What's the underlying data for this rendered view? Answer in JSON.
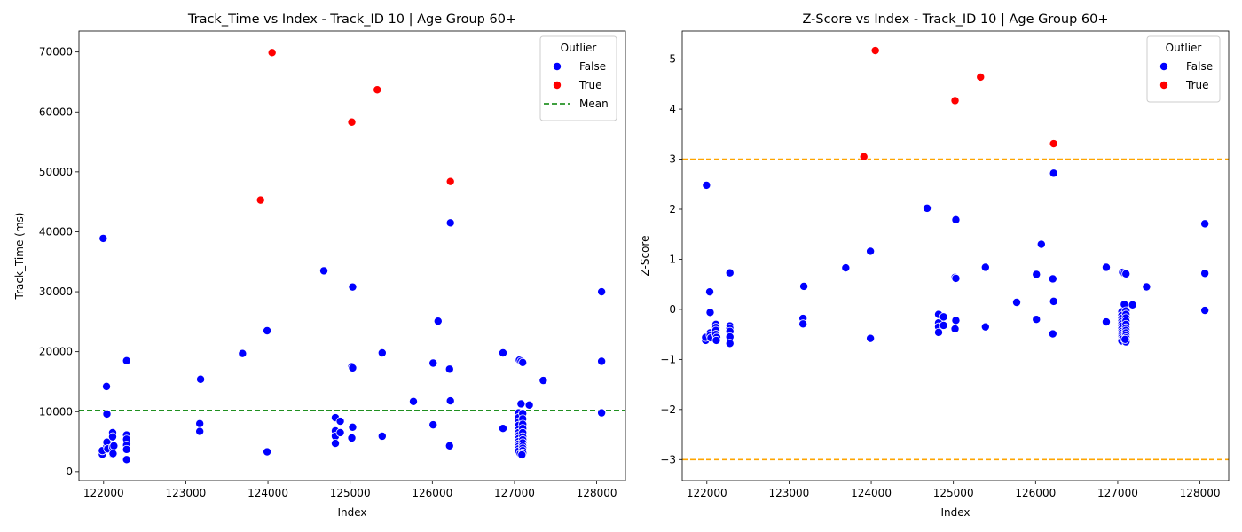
{
  "chart_data": [
    {
      "type": "scatter",
      "title": "Track_Time vs Index - Track_ID 10 | Age Group 60+",
      "xlabel": "Index",
      "ylabel": "Track_Time (ms)",
      "xlim": [
        121700,
        128350
      ],
      "ylim": [
        -1500,
        73500
      ],
      "xticks": [
        122000,
        123000,
        124000,
        125000,
        126000,
        127000,
        128000
      ],
      "yticks": [
        0,
        10000,
        20000,
        30000,
        40000,
        50000,
        60000,
        70000
      ],
      "legend": {
        "title": "Outlier",
        "position": "top-right",
        "entries": [
          {
            "label": "False",
            "kind": "marker",
            "color": "#0000ff"
          },
          {
            "label": "True",
            "kind": "marker",
            "color": "#ff0000"
          },
          {
            "label": "Mean",
            "kind": "dashed-line",
            "color": "#008000"
          }
        ]
      },
      "reference_lines": [
        {
          "name": "Mean",
          "axis": "y",
          "value": 10200,
          "color": "#008000",
          "style": "dashed"
        }
      ],
      "series": [
        {
          "name": "False",
          "color": "#0000ff",
          "points": [
            [
              121985,
              2900
            ],
            [
              121985,
              3500
            ],
            [
              121995,
              38900
            ],
            [
              122035,
              14200
            ],
            [
              122040,
              9600
            ],
            [
              122040,
              4300
            ],
            [
              122040,
              4900
            ],
            [
              122050,
              3800
            ],
            [
              122110,
              6500
            ],
            [
              122110,
              5800
            ],
            [
              122110,
              4100
            ],
            [
              122110,
              2900
            ],
            [
              122125,
              4300
            ],
            [
              122115,
              3000
            ],
            [
              122280,
              18500
            ],
            [
              122280,
              6100
            ],
            [
              122280,
              5400
            ],
            [
              122280,
              4400
            ],
            [
              122280,
              3700
            ],
            [
              122280,
              2000
            ],
            [
              123180,
              15400
            ],
            [
              123170,
              8000
            ],
            [
              123170,
              6700
            ],
            [
              123690,
              19700
            ],
            [
              123990,
              23500
            ],
            [
              123990,
              3300
            ],
            [
              124680,
              33500
            ],
            [
              124820,
              9000
            ],
            [
              124820,
              6800
            ],
            [
              124820,
              5900
            ],
            [
              124820,
              4700
            ],
            [
              124880,
              8400
            ],
            [
              124880,
              6500
            ],
            [
              125020,
              17500
            ],
            [
              125030,
              30800
            ],
            [
              125030,
              17300
            ],
            [
              125030,
              7400
            ],
            [
              125020,
              5600
            ],
            [
              125390,
              19800
            ],
            [
              125390,
              5900
            ],
            [
              125770,
              11700
            ],
            [
              126010,
              18100
            ],
            [
              126010,
              7800
            ],
            [
              126070,
              25100
            ],
            [
              126220,
              41500
            ],
            [
              126210,
              17100
            ],
            [
              126220,
              11800
            ],
            [
              126210,
              4300
            ],
            [
              126860,
              19800
            ],
            [
              126860,
              7200
            ],
            [
              127060,
              18600
            ],
            [
              127080,
              18400
            ],
            [
              127100,
              18200
            ],
            [
              127080,
              11300
            ],
            [
              127050,
              9800
            ],
            [
              127050,
              9000
            ],
            [
              127050,
              8300
            ],
            [
              127050,
              7700
            ],
            [
              127050,
              7000
            ],
            [
              127050,
              6500
            ],
            [
              127050,
              6000
            ],
            [
              127050,
              5500
            ],
            [
              127050,
              5000
            ],
            [
              127050,
              4600
            ],
            [
              127050,
              4200
            ],
            [
              127050,
              3800
            ],
            [
              127050,
              3400
            ],
            [
              127070,
              3000
            ],
            [
              127100,
              9700
            ],
            [
              127100,
              8800
            ],
            [
              127100,
              7900
            ],
            [
              127100,
              7200
            ],
            [
              127100,
              6500
            ],
            [
              127100,
              5800
            ],
            [
              127100,
              5300
            ],
            [
              127100,
              4800
            ],
            [
              127100,
              4300
            ],
            [
              127100,
              3900
            ],
            [
              127100,
              3500
            ],
            [
              127100,
              3100
            ],
            [
              127090,
              2800
            ],
            [
              127180,
              11100
            ],
            [
              127350,
              15200
            ],
            [
              128060,
              30000
            ],
            [
              128060,
              18400
            ],
            [
              128060,
              9800
            ]
          ]
        },
        {
          "name": "True",
          "color": "#ff0000",
          "points": [
            [
              123910,
              45300
            ],
            [
              124050,
              69900
            ],
            [
              125020,
              58300
            ],
            [
              125330,
              63700
            ],
            [
              126220,
              48400
            ]
          ]
        }
      ]
    },
    {
      "type": "scatter",
      "title": "Z-Score vs Index - Track_ID 10 | Age Group 60+",
      "xlabel": "Index",
      "ylabel": "Z-Score",
      "xlim": [
        121700,
        128350
      ],
      "ylim": [
        -3.42,
        5.56
      ],
      "xticks": [
        122000,
        123000,
        124000,
        125000,
        126000,
        127000,
        128000
      ],
      "yticks": [
        -3,
        -2,
        -1,
        0,
        1,
        2,
        3,
        4,
        5
      ],
      "legend": {
        "title": "Outlier",
        "position": "top-right",
        "entries": [
          {
            "label": "False",
            "kind": "marker",
            "color": "#0000ff"
          },
          {
            "label": "True",
            "kind": "marker",
            "color": "#ff0000"
          }
        ]
      },
      "reference_lines": [
        {
          "axis": "y",
          "value": 3,
          "color": "#ffa500",
          "style": "dashed"
        },
        {
          "axis": "y",
          "value": -3,
          "color": "#ffa500",
          "style": "dashed"
        }
      ],
      "series": [
        {
          "name": "False",
          "color": "#0000ff",
          "points": [
            [
              121985,
              -0.62
            ],
            [
              121985,
              -0.56
            ],
            [
              121995,
              2.48
            ],
            [
              122035,
              0.35
            ],
            [
              122040,
              -0.06
            ],
            [
              122040,
              -0.47
            ],
            [
              122040,
              -0.52
            ],
            [
              122050,
              -0.57
            ],
            [
              122110,
              -0.3
            ],
            [
              122110,
              -0.36
            ],
            [
              122110,
              -0.42
            ],
            [
              122110,
              -0.5
            ],
            [
              122120,
              -0.56
            ],
            [
              122115,
              -0.62
            ],
            [
              122280,
              0.73
            ],
            [
              122280,
              -0.33
            ],
            [
              122280,
              -0.38
            ],
            [
              122280,
              -0.44
            ],
            [
              122280,
              -0.55
            ],
            [
              122280,
              -0.68
            ],
            [
              123180,
              0.46
            ],
            [
              123170,
              -0.18
            ],
            [
              123170,
              -0.29
            ],
            [
              123690,
              0.83
            ],
            [
              123990,
              1.16
            ],
            [
              123990,
              -0.58
            ],
            [
              124680,
              2.02
            ],
            [
              124820,
              -0.1
            ],
            [
              124820,
              -0.27
            ],
            [
              124820,
              -0.35
            ],
            [
              124820,
              -0.46
            ],
            [
              124880,
              -0.15
            ],
            [
              124880,
              -0.32
            ],
            [
              125020,
              0.64
            ],
            [
              125030,
              1.79
            ],
            [
              125030,
              0.62
            ],
            [
              125030,
              -0.22
            ],
            [
              125020,
              -0.39
            ],
            [
              125390,
              0.84
            ],
            [
              125390,
              -0.35
            ],
            [
              125770,
              0.14
            ],
            [
              126010,
              0.7
            ],
            [
              126010,
              -0.2
            ],
            [
              126070,
              1.3
            ],
            [
              126220,
              2.72
            ],
            [
              126210,
              0.61
            ],
            [
              126220,
              0.16
            ],
            [
              126210,
              -0.49
            ],
            [
              126860,
              0.84
            ],
            [
              126860,
              -0.25
            ],
            [
              127060,
              0.74
            ],
            [
              127080,
              0.72
            ],
            [
              127100,
              0.71
            ],
            [
              127080,
              0.1
            ],
            [
              127050,
              -0.05
            ],
            [
              127050,
              -0.12
            ],
            [
              127050,
              -0.18
            ],
            [
              127050,
              -0.24
            ],
            [
              127050,
              -0.29
            ],
            [
              127050,
              -0.34
            ],
            [
              127050,
              -0.39
            ],
            [
              127050,
              -0.44
            ],
            [
              127050,
              -0.48
            ],
            [
              127050,
              -0.52
            ],
            [
              127050,
              -0.56
            ],
            [
              127050,
              -0.6
            ],
            [
              127050,
              -0.63
            ],
            [
              127070,
              -0.58
            ],
            [
              127100,
              -0.03
            ],
            [
              127100,
              -0.1
            ],
            [
              127100,
              -0.17
            ],
            [
              127100,
              -0.23
            ],
            [
              127100,
              -0.3
            ],
            [
              127100,
              -0.37
            ],
            [
              127100,
              -0.42
            ],
            [
              127100,
              -0.47
            ],
            [
              127100,
              -0.52
            ],
            [
              127100,
              -0.57
            ],
            [
              127100,
              -0.62
            ],
            [
              127100,
              -0.65
            ],
            [
              127090,
              -0.6
            ],
            [
              127180,
              0.09
            ],
            [
              127350,
              0.45
            ],
            [
              128060,
              1.71
            ],
            [
              128060,
              0.72
            ],
            [
              128060,
              -0.02
            ]
          ]
        },
        {
          "name": "True",
          "color": "#ff0000",
          "points": [
            [
              123910,
              3.05
            ],
            [
              124050,
              5.17
            ],
            [
              125020,
              4.17
            ],
            [
              125330,
              4.64
            ],
            [
              126220,
              3.31
            ]
          ]
        }
      ]
    }
  ]
}
